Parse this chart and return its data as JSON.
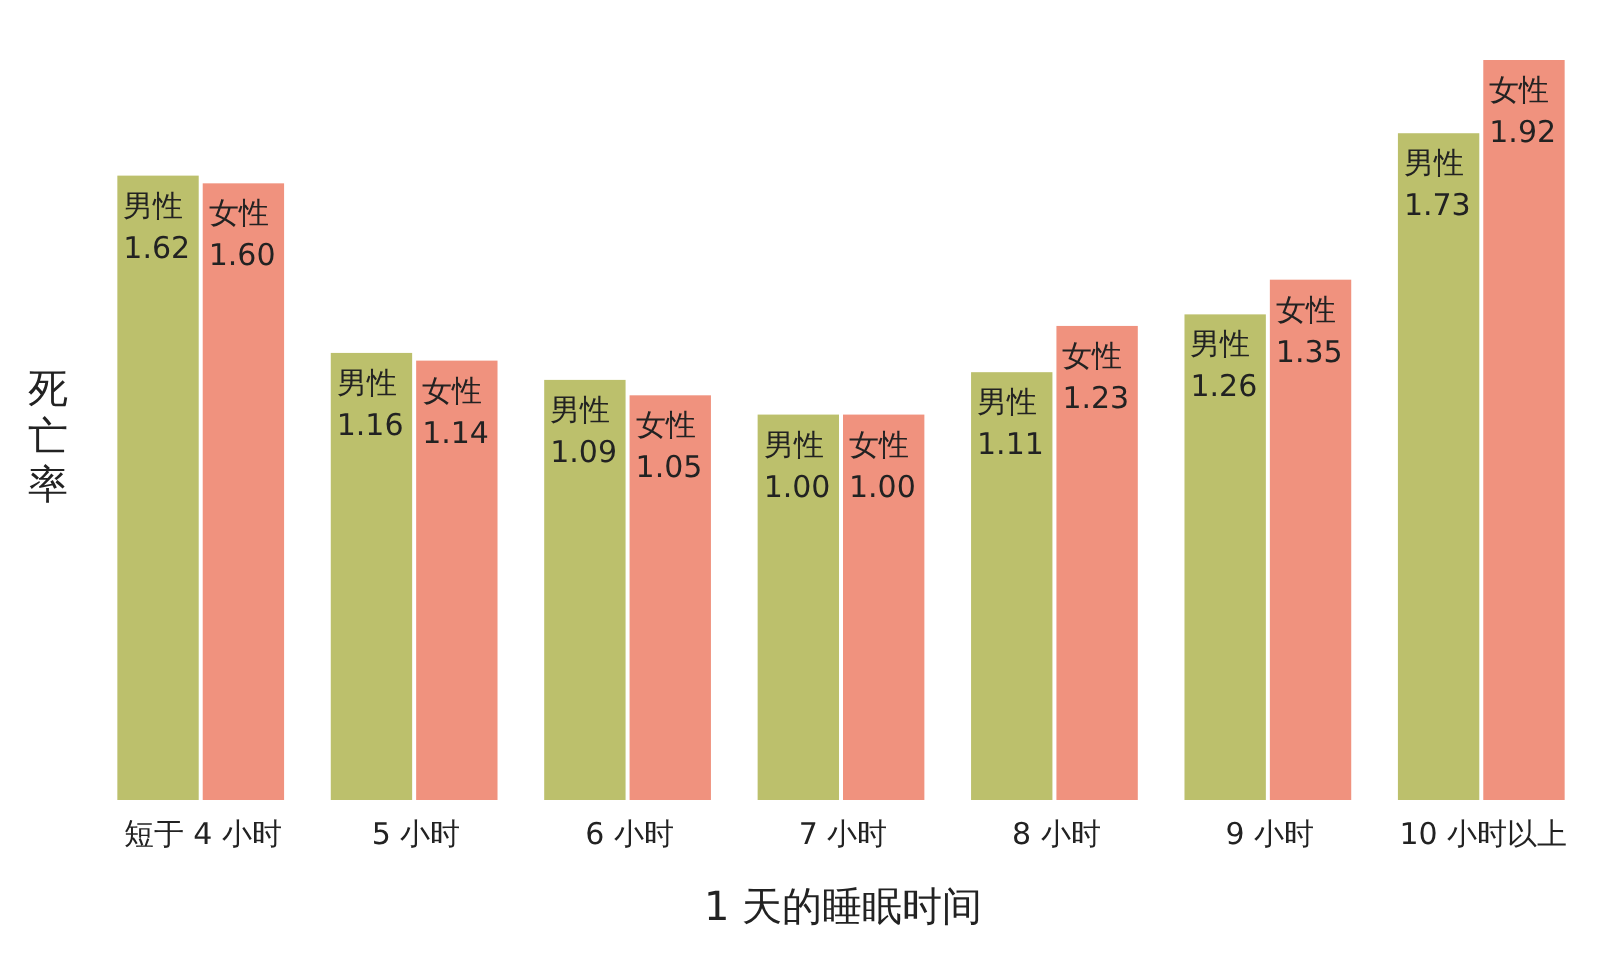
{
  "chart_data": {
    "type": "bar",
    "categories": [
      "短于 4 小时",
      "5 小时",
      "6 小时",
      "7 小时",
      "8 小时",
      "9 小时",
      "10 小时以上"
    ],
    "xlabel": "1 天的睡眠时间",
    "ylabel": "死亡率",
    "series": [
      {
        "name": "男性",
        "color": "#bcc06c",
        "values": [
          1.62,
          1.16,
          1.09,
          1.0,
          1.11,
          1.26,
          1.73
        ],
        "value_labels": [
          "1.62",
          "1.16",
          "1.09",
          "1.00",
          "1.11",
          "1.26",
          "1.73"
        ]
      },
      {
        "name": "女性",
        "color": "#f0927e",
        "values": [
          1.6,
          1.14,
          1.05,
          1.0,
          1.23,
          1.35,
          1.92
        ],
        "value_labels": [
          "1.60",
          "1.14",
          "1.05",
          "1.00",
          "1.23",
          "1.35",
          "1.92"
        ]
      }
    ]
  }
}
